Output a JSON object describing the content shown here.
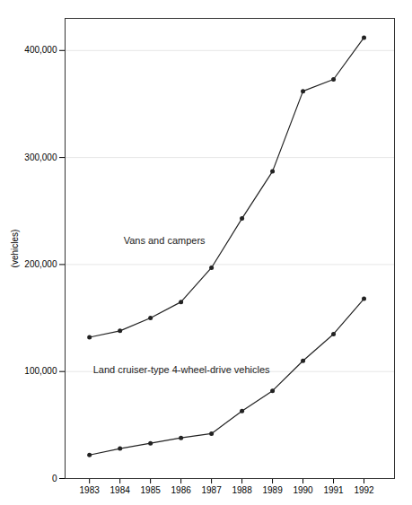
{
  "chart_data": {
    "type": "line",
    "x": [
      1983,
      1984,
      1985,
      1986,
      1987,
      1988,
      1989,
      1990,
      1991,
      1992
    ],
    "xlim": [
      1982.2,
      1993.0
    ],
    "xticks": [
      1983,
      1984,
      1985,
      1986,
      1987,
      1988,
      1989,
      1990,
      1991,
      1992
    ],
    "ylim": [
      0,
      430000
    ],
    "yticks": [
      0,
      {
        "value": 100000,
        "label": "100,000"
      },
      {
        "value": 200000,
        "label": "200,000"
      },
      {
        "value": 300000,
        "label": "300,000"
      },
      {
        "value": 400000,
        "label": "400,000"
      }
    ],
    "ylabel": "(vehicles)",
    "grid": "y",
    "series": [
      {
        "name": "Vans and campers",
        "color": "#222222",
        "marker": "dot",
        "values": [
          132000,
          138000,
          150000,
          165000,
          197000,
          243000,
          287000,
          362000,
          373000,
          412000
        ]
      },
      {
        "name": "Land cruiser-type 4-wheel-drive vehicles",
        "color": "#222222",
        "marker": "dot",
        "values": [
          22000,
          28000,
          33000,
          38000,
          42000,
          63000,
          82000,
          110000,
          135000,
          168000
        ]
      }
    ]
  }
}
